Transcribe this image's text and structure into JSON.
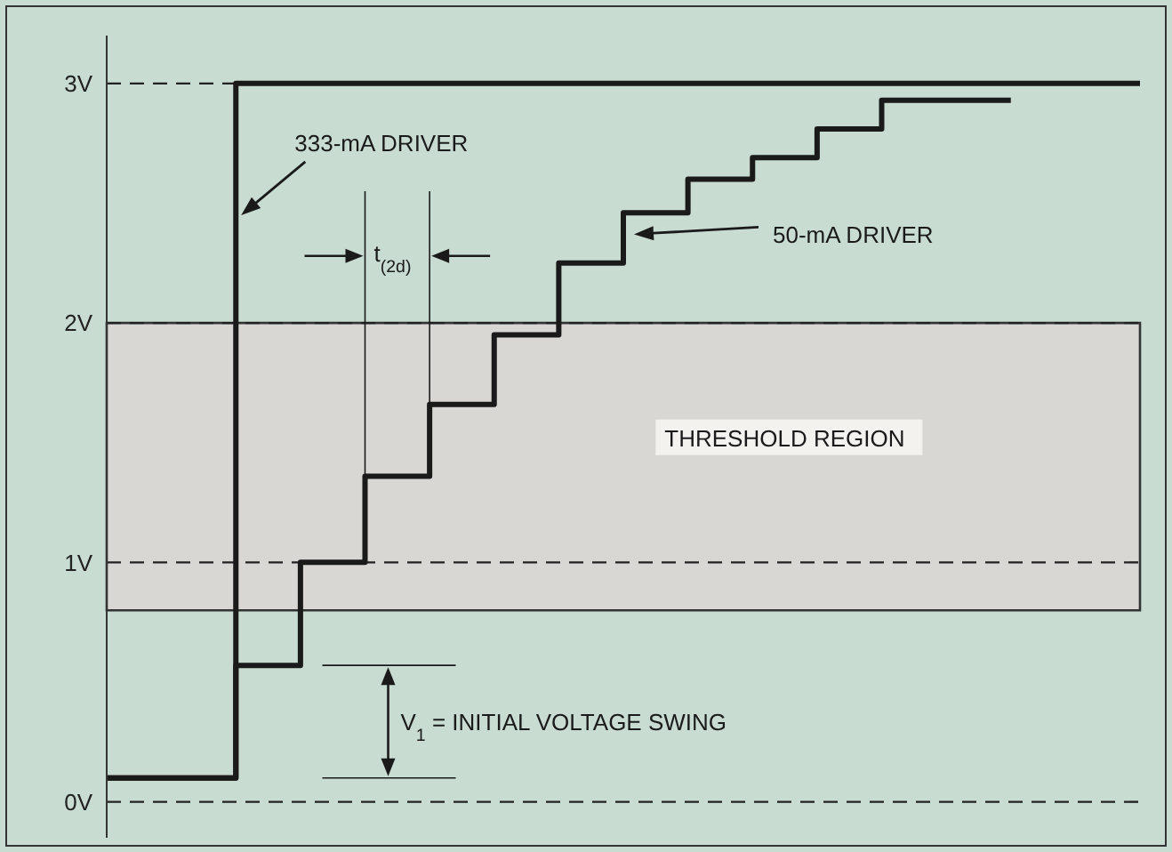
{
  "chart_data": {
    "type": "step",
    "categories": [
      null,
      null,
      null,
      null,
      null,
      null,
      null,
      null,
      null,
      null,
      null,
      null,
      null,
      null,
      null,
      null,
      null
    ],
    "series": [
      {
        "name": "333-mA DRIVER",
        "color": "#1a1a1a",
        "values": [
          0.1,
          0.1,
          3,
          3,
          3,
          3,
          3,
          3,
          3,
          3,
          3,
          3,
          3,
          3,
          3,
          3,
          3
        ]
      },
      {
        "name": "50-mA DRIVER",
        "color": "#1a1a1a",
        "values": [
          0.1,
          0.1,
          0.57,
          1.0,
          1.36,
          1.66,
          1.95,
          2.25,
          2.46,
          2.6,
          2.69,
          2.81,
          2.93,
          2.93,
          2.93,
          null,
          null
        ]
      }
    ],
    "ylim": [
      -0.15,
      3.2
    ],
    "yticks": [
      {
        "value": 0,
        "label": "0V"
      },
      {
        "value": 1,
        "label": "1V"
      },
      {
        "value": 2,
        "label": "2V"
      },
      {
        "value": 3,
        "label": "3V"
      }
    ],
    "tick_labels": "y",
    "ref_lines": [
      {
        "axis": "y",
        "value": 0,
        "line_style": "dashed"
      },
      {
        "axis": "y",
        "value": 1,
        "line_style": "dashed"
      },
      {
        "axis": "y",
        "value": 2,
        "line_style": "dashed"
      },
      {
        "axis": "y",
        "value": 3,
        "line_style": "dashed"
      }
    ],
    "legend": false,
    "marker": "none",
    "line_style": "solid",
    "bands": [
      {
        "axis": "y",
        "from": 0.8,
        "to": 2.0,
        "label": "THRESHOLD REGION",
        "color": "#d9d7d3"
      }
    ],
    "annotations": [
      "t$_{(2d)}$",
      "V$_{1}$ = INITIAL VOLTAGE SWING"
    ]
  }
}
